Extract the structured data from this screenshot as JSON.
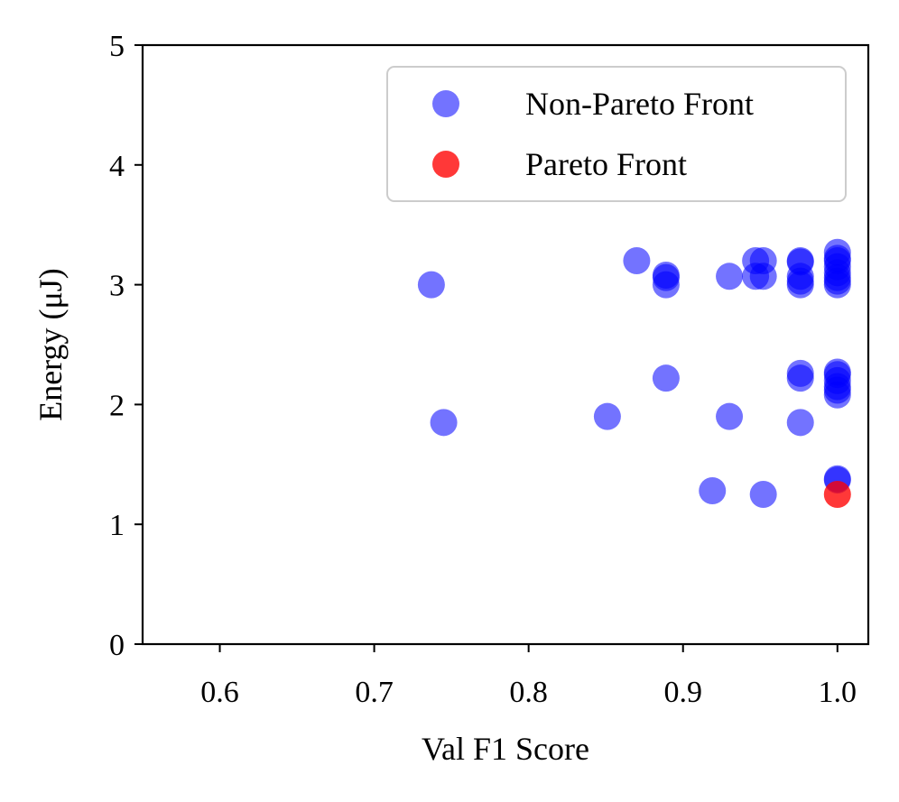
{
  "chart_data": {
    "type": "scatter",
    "xlabel": "Val F1 Score",
    "ylabel": "Energy (μJ)",
    "xlim": [
      0.55,
      1.02
    ],
    "ylim": [
      0,
      5
    ],
    "xticks": [
      "0.6",
      "0.7",
      "0.8",
      "0.9",
      "1.0"
    ],
    "yticks": [
      "0",
      "1",
      "2",
      "3",
      "4",
      "5"
    ],
    "grid": false,
    "legend_position": "top-right",
    "series": [
      {
        "name": "Non-Pareto Front",
        "color": "#0000ff",
        "points": [
          {
            "x": 0.737,
            "y": 3.0
          },
          {
            "x": 0.745,
            "y": 1.85
          },
          {
            "x": 0.851,
            "y": 1.9
          },
          {
            "x": 0.87,
            "y": 3.2
          },
          {
            "x": 0.889,
            "y": 3.0
          },
          {
            "x": 0.889,
            "y": 3.06
          },
          {
            "x": 0.889,
            "y": 3.08
          },
          {
            "x": 0.889,
            "y": 2.22
          },
          {
            "x": 0.919,
            "y": 1.28
          },
          {
            "x": 0.93,
            "y": 3.07
          },
          {
            "x": 0.93,
            "y": 1.9
          },
          {
            "x": 0.947,
            "y": 3.2
          },
          {
            "x": 0.947,
            "y": 3.07
          },
          {
            "x": 0.952,
            "y": 3.2
          },
          {
            "x": 0.952,
            "y": 3.07
          },
          {
            "x": 0.952,
            "y": 1.25
          },
          {
            "x": 0.976,
            "y": 3.2
          },
          {
            "x": 0.976,
            "y": 3.19
          },
          {
            "x": 0.976,
            "y": 3.07
          },
          {
            "x": 0.976,
            "y": 3.03
          },
          {
            "x": 0.976,
            "y": 3.0
          },
          {
            "x": 0.976,
            "y": 2.26
          },
          {
            "x": 0.976,
            "y": 2.22
          },
          {
            "x": 0.976,
            "y": 1.85
          },
          {
            "x": 1.0,
            "y": 3.27
          },
          {
            "x": 1.0,
            "y": 3.22
          },
          {
            "x": 1.0,
            "y": 3.2
          },
          {
            "x": 1.0,
            "y": 3.15
          },
          {
            "x": 1.0,
            "y": 3.1
          },
          {
            "x": 1.0,
            "y": 3.06
          },
          {
            "x": 1.0,
            "y": 3.03
          },
          {
            "x": 1.0,
            "y": 3.0
          },
          {
            "x": 1.0,
            "y": 2.27
          },
          {
            "x": 1.0,
            "y": 2.25
          },
          {
            "x": 1.0,
            "y": 2.2
          },
          {
            "x": 1.0,
            "y": 2.15
          },
          {
            "x": 1.0,
            "y": 2.12
          },
          {
            "x": 1.0,
            "y": 2.08
          },
          {
            "x": 1.0,
            "y": 1.38
          },
          {
            "x": 1.0,
            "y": 1.37
          }
        ]
      },
      {
        "name": "Pareto Front",
        "color": "#ff0000",
        "points": [
          {
            "x": 1.0,
            "y": 1.25
          }
        ]
      }
    ]
  }
}
